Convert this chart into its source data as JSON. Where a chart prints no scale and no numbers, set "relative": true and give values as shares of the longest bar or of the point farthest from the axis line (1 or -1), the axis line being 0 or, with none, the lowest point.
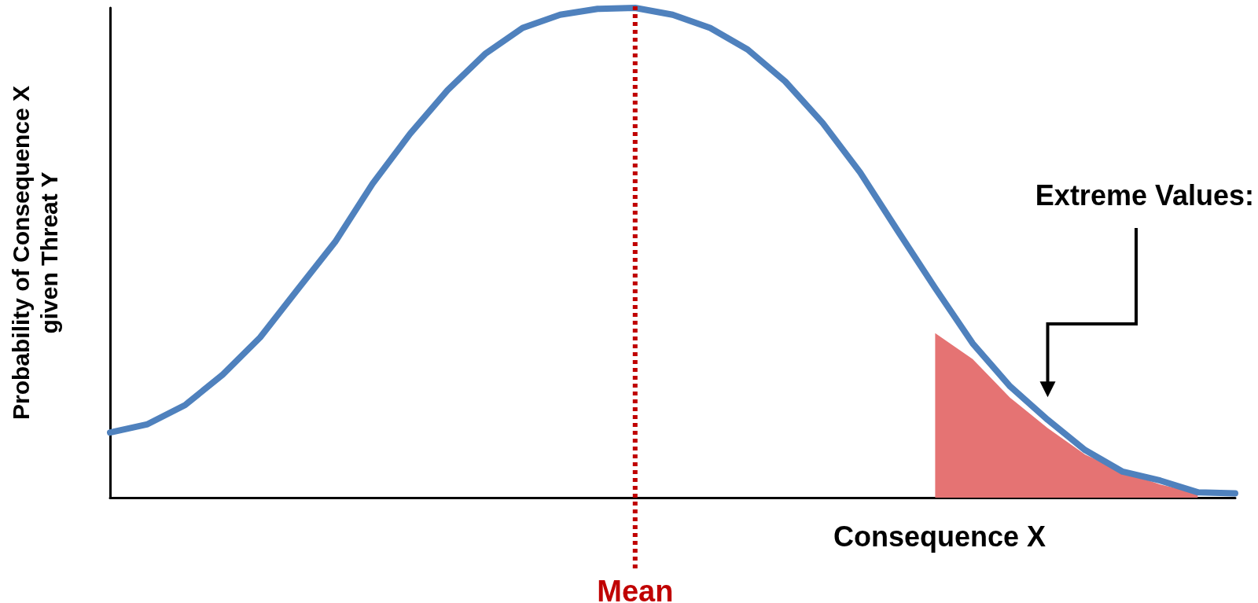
{
  "chart_data": {
    "type": "line",
    "relative": true,
    "xlabel": "Consequence X",
    "ylabel": "Probability of Consequence X\ngiven Threat Y",
    "categories": [
      null,
      null,
      null,
      null,
      null,
      null,
      null,
      null,
      null,
      null,
      null,
      null,
      null,
      null,
      null,
      null,
      null,
      null,
      null,
      null,
      null,
      null,
      null,
      null,
      null,
      null,
      null,
      null,
      null,
      null,
      null
    ],
    "series": [
      {
        "type": "area",
        "color": "#e57373",
        "values": [
          null,
          null,
          null,
          null,
          null,
          null,
          null,
          null,
          null,
          null,
          null,
          null,
          null,
          null,
          null,
          null,
          null,
          null,
          null,
          null,
          null,
          null,
          0.336,
          0.283,
          0.204,
          0.142,
          0.088,
          0.053,
          0.027,
          0.009,
          null
        ]
      },
      {
        "color": "#4f81bd",
        "values": [
          0.133,
          0.15,
          0.189,
          0.251,
          0.327,
          0.425,
          0.522,
          0.641,
          0.743,
          0.832,
          0.906,
          0.959,
          0.986,
          0.998,
          1,
          0.986,
          0.959,
          0.915,
          0.85,
          0.765,
          0.664,
          0.545,
          0.428,
          0.315,
          0.227,
          0.159,
          0.097,
          0.053,
          0.035,
          0.011,
          0.009
        ]
      }
    ],
    "annotations": [
      "Extreme Values:",
      "Mean"
    ],
    "grid": false,
    "marker": "none",
    "line_style": "solid"
  }
}
